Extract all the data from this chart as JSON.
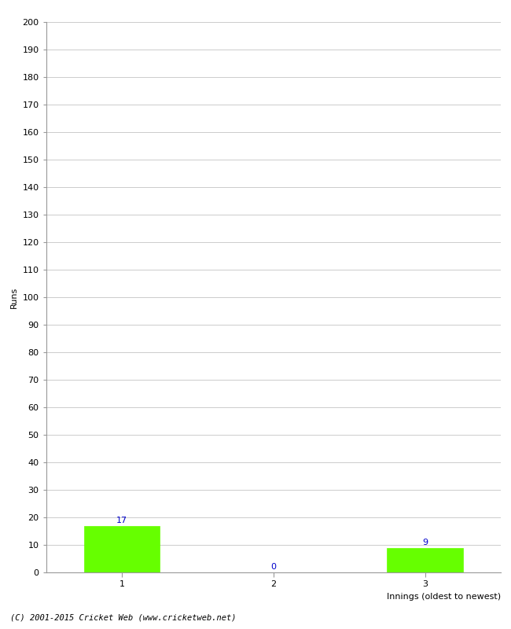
{
  "categories": [
    "1",
    "2",
    "3"
  ],
  "values": [
    17,
    0,
    9
  ],
  "bar_color": "#66ff00",
  "bar_edge_color": "#66ff00",
  "label_color": "#0000cc",
  "ylabel": "Runs",
  "xlabel": "Innings (oldest to newest)",
  "ylim": [
    0,
    200
  ],
  "yticks": [
    0,
    10,
    20,
    30,
    40,
    50,
    60,
    70,
    80,
    90,
    100,
    110,
    120,
    130,
    140,
    150,
    160,
    170,
    180,
    190,
    200
  ],
  "background_color": "#ffffff",
  "grid_color": "#cccccc",
  "footer": "(C) 2001-2015 Cricket Web (www.cricketweb.net)",
  "bar_width": 0.5,
  "label_fontsize": 8,
  "tick_fontsize": 8,
  "footer_fontsize": 7.5
}
